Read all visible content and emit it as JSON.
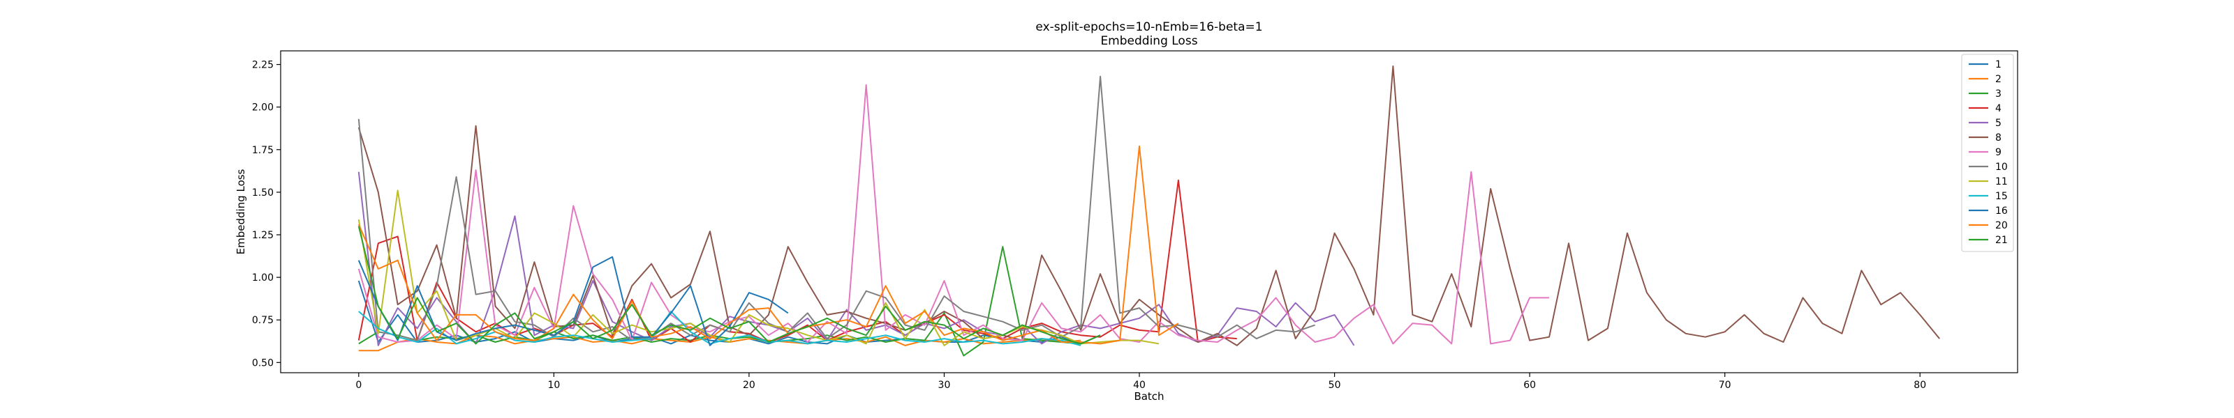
{
  "chart_data": {
    "type": "line",
    "title": "ex-split-epochs=10-nEmb=16-beta=1",
    "subtitle": "Embedding Loss",
    "xlabel": "Batch",
    "ylabel": "Embedding Loss",
    "xlim": [
      -4,
      85
    ],
    "ylim": [
      0.44,
      2.33
    ],
    "x_ticks": [
      0,
      10,
      20,
      30,
      40,
      50,
      60,
      70,
      80
    ],
    "y_ticks": [
      "0.50",
      "0.75",
      "1.00",
      "1.25",
      "1.50",
      "1.75",
      "2.00",
      "2.25"
    ],
    "grid": false,
    "legend_position": "top-right",
    "series": [
      {
        "name": "1",
        "color": "#1f77b4",
        "values": [
          0.98,
          0.62,
          0.78,
          0.62,
          0.63,
          0.66,
          0.62,
          0.64,
          0.68,
          0.62,
          0.64,
          0.63,
          0.66,
          0.62,
          0.64,
          0.65,
          0.61,
          0.66,
          0.63,
          0.62,
          0.64,
          0.61,
          0.65,
          0.62,
          0.61,
          0.66,
          0.62,
          0.63,
          0.64,
          0.63,
          0.62,
          0.62,
          0.66,
          0.64,
          0.63,
          0.62,
          0.65,
          0.61,
          0.66
        ]
      },
      {
        "name": "2",
        "color": "#ff7f0e",
        "values": [
          0.57,
          0.57,
          0.62,
          0.64,
          0.62,
          0.61,
          0.66,
          0.65,
          0.61,
          0.63,
          0.64,
          0.65,
          0.62,
          0.63,
          0.61,
          0.64,
          0.63,
          0.62,
          0.65,
          0.62,
          0.64,
          0.63,
          0.62,
          0.61,
          0.63,
          0.64,
          0.62,
          0.65,
          0.6,
          0.63,
          0.62,
          0.64,
          0.61,
          0.62,
          0.63,
          0.64,
          0.62,
          0.63
        ]
      },
      {
        "name": "3",
        "color": "#2ca02c",
        "values": [
          0.61,
          0.68,
          0.66,
          0.63,
          0.65,
          0.64,
          0.66,
          0.62,
          0.65,
          0.63,
          0.68,
          0.64,
          0.66,
          0.63,
          0.65,
          0.62,
          0.64,
          0.63,
          0.66,
          0.64,
          0.65,
          0.62,
          0.63,
          0.64,
          0.66,
          0.63,
          0.65,
          0.62,
          0.64,
          0.63,
          0.79,
          0.54,
          0.62,
          1.18,
          0.64,
          0.63,
          0.62,
          0.61
        ]
      },
      {
        "name": "4",
        "color": "#d62728",
        "values": [
          0.63,
          1.2,
          1.24,
          0.63,
          0.97,
          0.76,
          0.68,
          0.73,
          0.66,
          0.7,
          0.66,
          0.72,
          0.73,
          0.65,
          0.87,
          0.63,
          0.7,
          0.62,
          0.72,
          0.68,
          0.67,
          0.62,
          0.66,
          0.72,
          0.63,
          0.68,
          0.71,
          0.74,
          0.66,
          0.73,
          0.78,
          0.69,
          0.67,
          0.64,
          0.7,
          0.73,
          0.68,
          0.66,
          0.65,
          0.72,
          0.69,
          0.68,
          1.57,
          0.62,
          0.65,
          0.64
        ]
      },
      {
        "name": "5",
        "color": "#9467bd",
        "values": [
          1.62,
          0.6,
          0.82,
          0.7,
          0.88,
          0.74,
          0.61,
          0.93,
          1.36,
          0.66,
          0.72,
          0.7,
          0.98,
          0.74,
          0.68,
          0.63,
          0.71,
          0.73,
          0.65,
          0.77,
          0.74,
          0.72,
          0.68,
          0.76,
          0.63,
          0.81,
          0.69,
          0.72,
          0.66,
          0.73,
          0.7,
          0.75,
          0.68,
          0.66,
          0.72,
          0.61,
          0.68,
          0.72,
          0.7,
          0.73,
          0.76,
          0.84,
          0.67,
          0.62,
          0.66,
          0.82,
          0.8,
          0.71,
          0.85,
          0.74,
          0.78,
          0.6
        ]
      },
      {
        "name": "8",
        "color": "#8c564b",
        "values": [
          1.88,
          1.5,
          0.84,
          0.92,
          1.19,
          0.76,
          1.89,
          0.83,
          0.7,
          1.09,
          0.71,
          0.72,
          1.01,
          0.66,
          0.95,
          1.08,
          0.88,
          0.96,
          1.27,
          0.71,
          0.66,
          0.78,
          1.18,
          0.97,
          0.78,
          0.8,
          0.76,
          0.73,
          0.69,
          0.73,
          0.8,
          0.74,
          0.64,
          0.66,
          0.63,
          1.13,
          0.92,
          0.69,
          1.02,
          0.73,
          0.87,
          0.78,
          0.7,
          0.62,
          0.67,
          0.6,
          0.7,
          1.04,
          0.64,
          0.81,
          1.26,
          1.05,
          0.78,
          2.24,
          0.78,
          0.74,
          1.02,
          0.71,
          1.52,
          1.05,
          0.63,
          0.65,
          1.2,
          0.63,
          0.7,
          1.26,
          0.91,
          0.75,
          0.67,
          0.65,
          0.68,
          0.78,
          0.67,
          0.62,
          0.88,
          0.73,
          0.67,
          1.04,
          0.84,
          0.91,
          0.78,
          0.64
        ]
      },
      {
        "name": "9",
        "color": "#e377c2",
        "values": [
          1.05,
          0.65,
          0.62,
          0.63,
          0.72,
          0.64,
          1.63,
          0.72,
          0.66,
          0.94,
          0.7,
          1.42,
          1.02,
          0.87,
          0.63,
          0.97,
          0.78,
          0.7,
          0.68,
          0.74,
          0.77,
          0.66,
          0.73,
          0.62,
          0.74,
          0.67,
          2.13,
          0.69,
          0.78,
          0.72,
          0.98,
          0.66,
          0.72,
          0.64,
          0.63,
          0.85,
          0.7,
          0.68,
          0.78,
          0.64,
          0.62,
          0.74,
          0.66,
          0.63,
          0.62,
          0.69,
          0.75,
          0.88,
          0.72,
          0.62,
          0.65,
          0.76,
          0.84,
          0.61,
          0.73,
          0.72,
          0.61,
          1.62,
          0.61,
          0.63,
          0.88,
          0.88
        ]
      },
      {
        "name": "10",
        "color": "#7f7f7f",
        "values": [
          1.93,
          0.68,
          0.66,
          0.63,
          0.95,
          1.59,
          0.9,
          0.92,
          0.74,
          0.72,
          0.65,
          0.76,
          0.68,
          0.71,
          0.63,
          0.65,
          0.73,
          0.66,
          0.72,
          0.68,
          0.85,
          0.73,
          0.68,
          0.79,
          0.64,
          0.72,
          0.92,
          0.88,
          0.72,
          0.69,
          0.89,
          0.8,
          0.77,
          0.74,
          0.69,
          0.72,
          0.65,
          0.71,
          2.18,
          0.79,
          0.82,
          0.71,
          0.72,
          0.69,
          0.65,
          0.72,
          0.64,
          0.69,
          0.68,
          0.72
        ]
      },
      {
        "name": "11",
        "color": "#bcbd22",
        "values": [
          1.34,
          0.67,
          1.51,
          0.79,
          0.92,
          0.63,
          0.66,
          0.7,
          0.64,
          0.79,
          0.73,
          0.65,
          0.78,
          0.67,
          0.72,
          0.68,
          0.7,
          0.73,
          0.66,
          0.62,
          0.78,
          0.72,
          0.7,
          0.66,
          0.63,
          0.66,
          0.61,
          0.85,
          0.64,
          0.81,
          0.6,
          0.68,
          0.64,
          0.66,
          0.71,
          0.69,
          0.66,
          0.61,
          0.62,
          0.63,
          0.63,
          0.61
        ]
      },
      {
        "name": "15",
        "color": "#17becf",
        "values": [
          0.8,
          0.7,
          0.65,
          0.62,
          0.7,
          0.61,
          0.64,
          0.68,
          0.63,
          0.62,
          0.65,
          0.66,
          0.64,
          0.62,
          0.63,
          0.64,
          0.8,
          0.68,
          0.61,
          0.64,
          0.66,
          0.62,
          0.63,
          0.61,
          0.63,
          0.62,
          0.64,
          0.66,
          0.63,
          0.62,
          0.64,
          0.62,
          0.63,
          0.61,
          0.62,
          0.64,
          0.63,
          0.6
        ]
      },
      {
        "name": "16",
        "color": "#1f77b4",
        "values": [
          1.1,
          0.83,
          0.63,
          0.95,
          0.68,
          0.63,
          0.67,
          0.7,
          0.72,
          0.69,
          0.66,
          0.74,
          1.06,
          1.12,
          0.65,
          0.65,
          0.79,
          0.95,
          0.6,
          0.71,
          0.91,
          0.87,
          0.79
        ]
      },
      {
        "name": "20",
        "color": "#ff7f0e",
        "values": [
          1.31,
          1.05,
          1.1,
          0.79,
          0.63,
          0.78,
          0.78,
          0.68,
          0.64,
          0.63,
          0.7,
          0.9,
          0.75,
          0.64,
          0.86,
          0.65,
          0.67,
          0.71,
          0.64,
          0.73,
          0.81,
          0.82,
          0.67,
          0.71,
          0.73,
          0.75,
          0.71,
          0.95,
          0.73,
          0.8,
          0.66,
          0.7,
          0.68,
          0.63,
          0.66,
          0.69,
          0.62,
          0.62,
          0.61,
          0.63,
          1.77,
          0.66,
          0.73
        ]
      },
      {
        "name": "21",
        "color": "#2ca02c",
        "values": [
          1.3,
          0.83,
          0.64,
          0.88,
          0.68,
          0.73,
          0.61,
          0.72,
          0.79,
          0.64,
          0.68,
          0.74,
          0.64,
          0.69,
          0.84,
          0.66,
          0.72,
          0.69,
          0.76,
          0.7,
          0.74,
          0.62,
          0.67,
          0.71,
          0.76,
          0.7,
          0.66,
          0.83,
          0.69,
          0.74,
          0.72,
          0.64,
          0.7,
          0.66,
          0.72,
          0.68,
          0.64,
          0.61,
          0.66
        ]
      }
    ]
  }
}
